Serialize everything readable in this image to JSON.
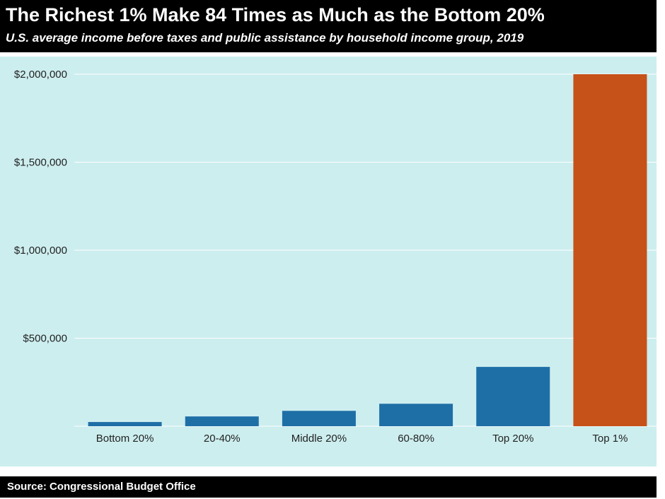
{
  "header": {
    "title": "The Richest 1% Make 84 Times as Much as the Bottom 20%",
    "subtitle": "U.S. average income before taxes and public assistance by household income group, 2019"
  },
  "footer": {
    "source": "Source: Congressional Budget Office"
  },
  "chart_data": {
    "type": "bar",
    "categories": [
      "Bottom 20%",
      "20-40%",
      "Middle 20%",
      "60-80%",
      "Top 20%",
      "Top 1%"
    ],
    "values": [
      23800,
      55500,
      87300,
      127500,
      337000,
      2000000
    ],
    "ylim": [
      0,
      2000000
    ],
    "yticks": [
      500000,
      1000000,
      1500000,
      2000000
    ],
    "ytick_labels": [
      "$500,000",
      "$1,000,000",
      "$1,500,000",
      "$2,000,000"
    ],
    "colors": [
      "#1f6fa7",
      "#1f6fa7",
      "#1f6fa7",
      "#1f6fa7",
      "#1f6fa7",
      "#c6521a"
    ],
    "grid": true,
    "xlabel": "",
    "ylabel": ""
  }
}
